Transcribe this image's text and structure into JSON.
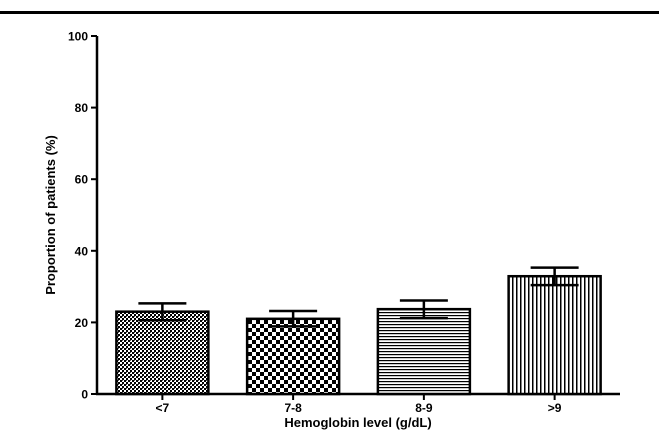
{
  "chart_data": {
    "type": "bar",
    "title": "",
    "xlabel": "Hemoglobin level (g/dL)",
    "ylabel": "Proportion of patients (%)",
    "categories": [
      "<7",
      "7-8",
      "8-9",
      ">9"
    ],
    "values": [
      23,
      21,
      23.7,
      32.9
    ],
    "error_upper": [
      25.3,
      23.2,
      26.1,
      35.3
    ],
    "error_lower": [
      20.6,
      18.9,
      21.2,
      30.4
    ],
    "ylim": [
      0,
      100
    ],
    "yticks": [
      "0",
      "20",
      "40",
      "60",
      "80",
      "100"
    ],
    "patterns": [
      "fine-crosshatch",
      "checkerboard",
      "horizontal-lines",
      "vertical-lines"
    ],
    "grid": false,
    "legend": "none",
    "colors": {
      "bar_stroke": "#000000",
      "pattern": "#000000",
      "background": "#ffffff"
    }
  }
}
